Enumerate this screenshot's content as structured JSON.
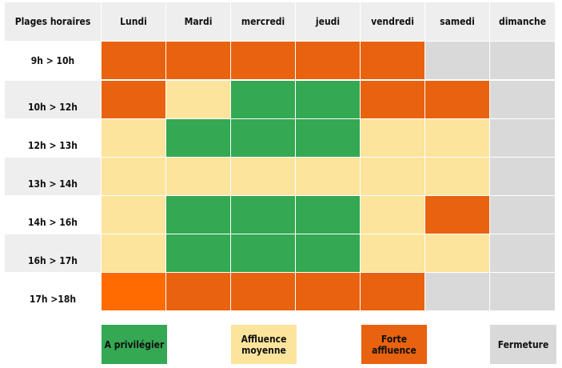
{
  "colors": {
    "green": "#34a853",
    "yellow": "#fce49c",
    "orange": "#e8620f",
    "orange_bright": "#ff6b00",
    "grey": "#d9d9d9",
    "header_bg": "#eeeeee"
  },
  "table": {
    "headers": [
      "Plages horaires",
      "Lundi",
      "Mardi",
      "mercredi",
      "jeudi",
      "vendredi",
      "samedi",
      "dimanche"
    ],
    "rows": [
      {
        "time": "9h > 10h",
        "cells": [
          "orange",
          "orange",
          "orange",
          "orange",
          "orange",
          "grey",
          "grey"
        ]
      },
      {
        "time": "10h > 12h",
        "cells": [
          "orange",
          "yellow",
          "green",
          "green",
          "orange",
          "orange",
          "grey"
        ]
      },
      {
        "time": "12h > 13h",
        "cells": [
          "yellow",
          "green",
          "green",
          "green",
          "yellow",
          "yellow",
          "grey"
        ]
      },
      {
        "time": "13h > 14h",
        "cells": [
          "yellow",
          "yellow",
          "yellow",
          "yellow",
          "yellow",
          "yellow",
          "grey"
        ]
      },
      {
        "time": "14h > 16h",
        "cells": [
          "yellow",
          "green",
          "green",
          "green",
          "yellow",
          "orange",
          "grey"
        ]
      },
      {
        "time": "16h > 17h",
        "cells": [
          "yellow",
          "green",
          "green",
          "green",
          "yellow",
          "yellow",
          "grey"
        ]
      },
      {
        "time": "17h >18h",
        "cells": [
          "orange_bright",
          "orange",
          "orange",
          "orange",
          "orange",
          "grey",
          "grey"
        ]
      }
    ]
  },
  "legend": [
    {
      "key": "green",
      "label_line1": "A privilégier",
      "label_line2": ""
    },
    {
      "key": "yellow",
      "label_line1": "Affluence",
      "label_line2": "moyenne"
    },
    {
      "key": "orange",
      "label_line1": "Forte",
      "label_line2": "affluence"
    },
    {
      "key": "grey",
      "label_line1": "Fermeture",
      "label_line2": ""
    }
  ]
}
